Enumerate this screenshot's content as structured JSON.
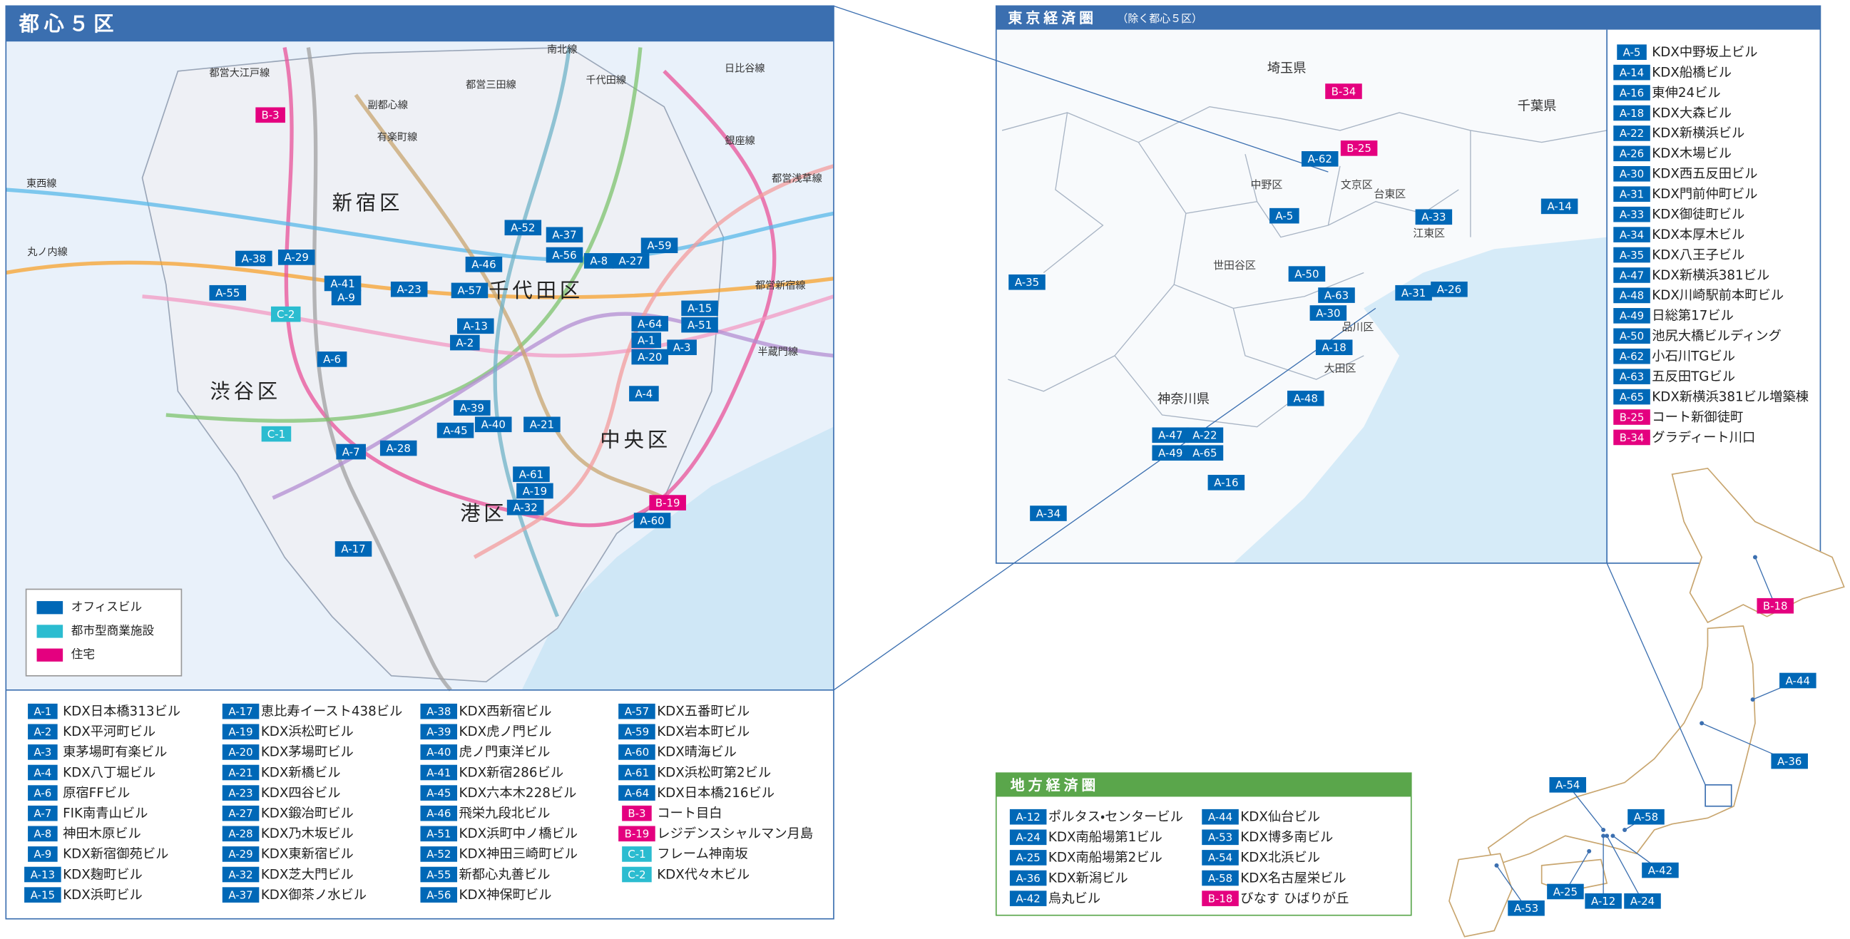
{
  "central": {
    "title": "都心５区",
    "wards": [
      "新宿区",
      "千代田区",
      "渋谷区",
      "中央区",
      "港区"
    ],
    "lines": [
      "南北線",
      "都営大江戸線",
      "都営三田線",
      "千代田線",
      "日比谷線",
      "副都心線",
      "有楽町線",
      "銀座線",
      "東西線",
      "都営浅草線",
      "丸ノ内線",
      "都営新宿線",
      "半蔵門線"
    ],
    "markers": [
      "B-3",
      "A-38",
      "A-29",
      "A-55",
      "A-41",
      "A-9",
      "A-23",
      "C-2",
      "A-6",
      "A-52",
      "A-37",
      "A-56",
      "A-8",
      "A-27",
      "A-59",
      "A-46",
      "A-57",
      "A-13",
      "A-2",
      "A-64",
      "A-1",
      "A-20",
      "A-15",
      "A-51",
      "A-3",
      "A-4",
      "A-39",
      "A-40",
      "A-21",
      "A-45",
      "C-1",
      "A-7",
      "A-28",
      "A-61",
      "A-19",
      "A-32",
      "B-19",
      "A-60",
      "A-17"
    ],
    "legend": [
      {
        "label": "オフィスビル",
        "color": "#0068b7"
      },
      {
        "label": "都市型商業施設",
        "color": "#2bbcd0"
      },
      {
        "label": "住宅",
        "color": "#e4007f"
      }
    ],
    "properties": [
      {
        "code": "A-1",
        "name": "KDX日本橋313ビル"
      },
      {
        "code": "A-2",
        "name": "KDX平河町ビル"
      },
      {
        "code": "A-3",
        "name": "東茅場町有楽ビル"
      },
      {
        "code": "A-4",
        "name": "KDX八丁堀ビル"
      },
      {
        "code": "A-6",
        "name": "原宿FFビル"
      },
      {
        "code": "A-7",
        "name": "FIK南青山ビル"
      },
      {
        "code": "A-8",
        "name": "神田木原ビル"
      },
      {
        "code": "A-9",
        "name": "KDX新宿御苑ビル"
      },
      {
        "code": "A-13",
        "name": "KDX麹町ビル"
      },
      {
        "code": "A-15",
        "name": "KDX浜町ビル"
      },
      {
        "code": "A-17",
        "name": "恵比寿イースト438ビル"
      },
      {
        "code": "A-19",
        "name": "KDX浜松町ビル"
      },
      {
        "code": "A-20",
        "name": "KDX茅場町ビル"
      },
      {
        "code": "A-21",
        "name": "KDX新橋ビル"
      },
      {
        "code": "A-23",
        "name": "KDX四谷ビル"
      },
      {
        "code": "A-27",
        "name": "KDX鍛冶町ビル"
      },
      {
        "code": "A-28",
        "name": "KDX乃木坂ビル"
      },
      {
        "code": "A-29",
        "name": "KDX東新宿ビル"
      },
      {
        "code": "A-32",
        "name": "KDX芝大門ビル"
      },
      {
        "code": "A-37",
        "name": "KDX御茶ノ水ビル"
      },
      {
        "code": "A-38",
        "name": "KDX西新宿ビル"
      },
      {
        "code": "A-39",
        "name": "KDX虎ノ門ビル"
      },
      {
        "code": "A-40",
        "name": "虎ノ門東洋ビル"
      },
      {
        "code": "A-41",
        "name": "KDX新宿286ビル"
      },
      {
        "code": "A-45",
        "name": "KDX六本木228ビル"
      },
      {
        "code": "A-46",
        "name": "飛栄九段北ビル"
      },
      {
        "code": "A-51",
        "name": "KDX浜町中ノ橋ビル"
      },
      {
        "code": "A-52",
        "name": "KDX神田三崎町ビル"
      },
      {
        "code": "A-55",
        "name": "新都心丸善ビル"
      },
      {
        "code": "A-56",
        "name": "KDX神保町ビル"
      },
      {
        "code": "A-57",
        "name": "KDX五番町ビル"
      },
      {
        "code": "A-59",
        "name": "KDX岩本町ビル"
      },
      {
        "code": "A-60",
        "name": "KDX晴海ビル"
      },
      {
        "code": "A-61",
        "name": "KDX浜松町第2ビル"
      },
      {
        "code": "A-64",
        "name": "KDX日本橋216ビル"
      },
      {
        "code": "B-3",
        "name": "コート目白"
      },
      {
        "code": "B-19",
        "name": "レジデンスシャルマン月島"
      },
      {
        "code": "C-1",
        "name": "フレーム神南坂"
      },
      {
        "code": "C-2",
        "name": "KDX代々木ビル"
      }
    ]
  },
  "tokyo": {
    "title": "東京経済圏",
    "subtitle": "（除く都心５区）",
    "areas": [
      "埼玉県",
      "千葉県",
      "中野区",
      "文京区",
      "台東区",
      "江東区",
      "世田谷区",
      "品川区",
      "大田区",
      "神奈川県"
    ],
    "markers": [
      "B-34",
      "B-25",
      "A-62",
      "A-5",
      "A-33",
      "A-14",
      "A-50",
      "A-63",
      "A-30",
      "A-31",
      "A-26",
      "A-18",
      "A-48",
      "A-35",
      "A-47",
      "A-22",
      "A-49",
      "A-65",
      "A-16",
      "A-34"
    ],
    "properties": [
      {
        "code": "A-5",
        "name": "KDX中野坂上ビル"
      },
      {
        "code": "A-14",
        "name": "KDX船橋ビル"
      },
      {
        "code": "A-16",
        "name": "東伸24ビル"
      },
      {
        "code": "A-18",
        "name": "KDX大森ビル"
      },
      {
        "code": "A-22",
        "name": "KDX新横浜ビル"
      },
      {
        "code": "A-26",
        "name": "KDX木場ビル"
      },
      {
        "code": "A-30",
        "name": "KDX西五反田ビル"
      },
      {
        "code": "A-31",
        "name": "KDX門前仲町ビル"
      },
      {
        "code": "A-33",
        "name": "KDX御徒町ビル"
      },
      {
        "code": "A-34",
        "name": "KDX本厚木ビル"
      },
      {
        "code": "A-35",
        "name": "KDX八王子ビル"
      },
      {
        "code": "A-47",
        "name": "KDX新横浜381ビル"
      },
      {
        "code": "A-48",
        "name": "KDX川崎駅前本町ビル"
      },
      {
        "code": "A-49",
        "name": "日総第17ビル"
      },
      {
        "code": "A-50",
        "name": "池尻大橋ビルディング"
      },
      {
        "code": "A-62",
        "name": "小石川TGビル"
      },
      {
        "code": "A-63",
        "name": "五反田TGビル"
      },
      {
        "code": "A-65",
        "name": "KDX新横浜381ビル増築棟"
      },
      {
        "code": "B-25",
        "name": "コート新御徒町"
      },
      {
        "code": "B-34",
        "name": "グラディート川口"
      }
    ]
  },
  "regional": {
    "title": "地方経済圏",
    "markers": [
      "B-18",
      "A-44",
      "A-36",
      "A-54",
      "A-58",
      "A-42",
      "A-25",
      "A-12",
      "A-24",
      "A-53"
    ],
    "properties": [
      {
        "code": "A-12",
        "name": "ポルタス・センタービル"
      },
      {
        "code": "A-24",
        "name": "KDX南船場第1ビル"
      },
      {
        "code": "A-25",
        "name": "KDX南船場第2ビル"
      },
      {
        "code": "A-36",
        "name": "KDX新潟ビル"
      },
      {
        "code": "A-42",
        "name": "烏丸ビル"
      },
      {
        "code": "A-44",
        "name": "KDX仙台ビル"
      },
      {
        "code": "A-53",
        "name": "KDX博多南ビル"
      },
      {
        "code": "A-54",
        "name": "KDX北浜ビル"
      },
      {
        "code": "A-58",
        "name": "KDX名古屋栄ビル"
      },
      {
        "code": "B-18",
        "name": "びなす ひばりが丘"
      }
    ]
  }
}
